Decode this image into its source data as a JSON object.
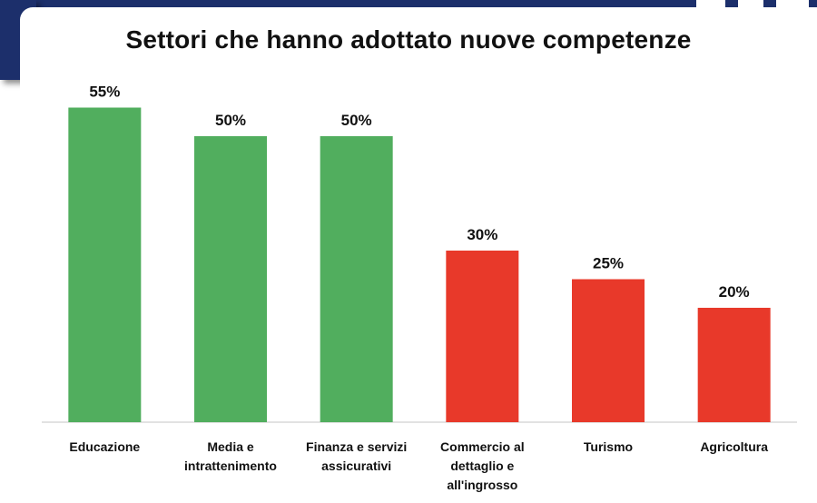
{
  "colors": {
    "frame": "#1c2f6b",
    "positive": "#51ae5e",
    "negative": "#e8392a",
    "axis": "#d9d9d9"
  },
  "chart_data": {
    "type": "bar",
    "title": "Settori che hanno adottato nuove competenze",
    "xlabel": "",
    "ylabel": "",
    "ylim": [
      0,
      60
    ],
    "grid": false,
    "categories": [
      [
        "Educazione"
      ],
      [
        "Media e",
        "intrattenimento"
      ],
      [
        "Finanza e servizi",
        "assicurativi"
      ],
      [
        "Commercio al",
        "dettaglio e",
        "all'ingrosso"
      ],
      [
        "Turismo"
      ],
      [
        "Agricoltura"
      ]
    ],
    "values": [
      55,
      50,
      50,
      30,
      25,
      20
    ],
    "data_labels": [
      "55%",
      "50%",
      "50%",
      "30%",
      "25%",
      "20%"
    ],
    "bar_colors": [
      "#51ae5e",
      "#51ae5e",
      "#51ae5e",
      "#e8392a",
      "#e8392a",
      "#e8392a"
    ]
  }
}
